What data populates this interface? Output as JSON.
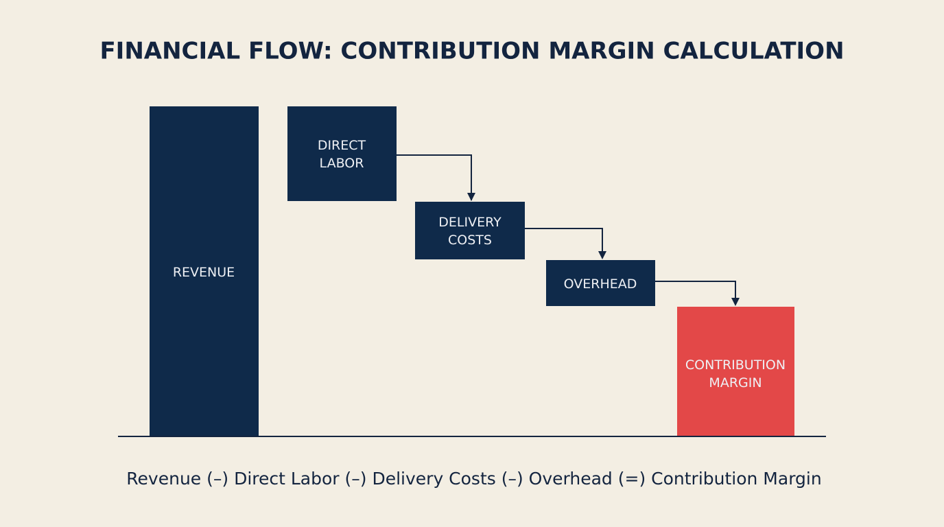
{
  "title": "FINANCIAL FLOW: CONTRIBUTION MARGIN CALCULATION",
  "nodes": [
    {
      "lines": [
        "REVENUE"
      ]
    },
    {
      "lines": [
        "DIRECT",
        "LABOR"
      ]
    },
    {
      "lines": [
        "DELIVERY",
        "COSTS"
      ]
    },
    {
      "lines": [
        "OVERHEAD"
      ]
    },
    {
      "lines": [
        "CONTRIBUTION",
        "MARGIN"
      ]
    }
  ],
  "formula": "Revenue (–) Direct Labor (–) Delivery Costs (–) Overhead (=) Contribution Margin"
}
